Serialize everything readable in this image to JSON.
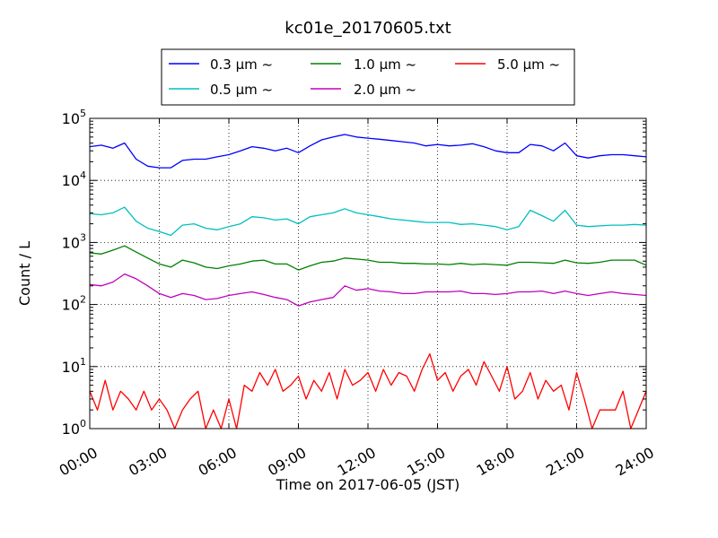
{
  "chart_data": {
    "type": "line",
    "title": "kc01e_20170605.txt",
    "xlabel": "Time on 2017-06-05 (JST)",
    "ylabel": "Count / L",
    "yscale": "log",
    "ylim": [
      1,
      100000
    ],
    "xlim": [
      "2017-06-05 00:00",
      "2017-06-06 00:00"
    ],
    "x_ticks": [
      "00:00",
      "03:00",
      "06:00",
      "09:00",
      "12:00",
      "15:00",
      "18:00",
      "21:00",
      "24:00"
    ],
    "y_ticks": [
      {
        "value": 1,
        "base": "10",
        "exp": "0"
      },
      {
        "value": 10,
        "base": "10",
        "exp": "1"
      },
      {
        "value": 100,
        "base": "10",
        "exp": "2"
      },
      {
        "value": 1000,
        "base": "10",
        "exp": "3"
      },
      {
        "value": 10000,
        "base": "10",
        "exp": "4"
      },
      {
        "value": 100000,
        "base": "10",
        "exp": "5"
      }
    ],
    "grid": true,
    "legend_position": "top",
    "series": [
      {
        "name": "0.3 μm ~",
        "color": "#0000ff",
        "x": [
          "00:00",
          "00:30",
          "01:00",
          "01:30",
          "02:00",
          "02:30",
          "03:00",
          "03:30",
          "04:00",
          "04:30",
          "05:00",
          "05:30",
          "06:00",
          "06:30",
          "07:00",
          "07:30",
          "08:00",
          "08:30",
          "09:00",
          "09:30",
          "10:00",
          "10:30",
          "11:00",
          "11:30",
          "12:00",
          "12:30",
          "13:00",
          "13:30",
          "14:00",
          "14:30",
          "15:00",
          "15:30",
          "16:00",
          "16:30",
          "17:00",
          "17:30",
          "18:00",
          "18:30",
          "19:00",
          "19:30",
          "20:00",
          "20:30",
          "21:00",
          "21:30",
          "22:00",
          "22:30",
          "23:00",
          "23:30",
          "24:00"
        ],
        "values": [
          35000,
          37000,
          33000,
          40000,
          22000,
          17000,
          16000,
          16000,
          21000,
          22000,
          22000,
          24000,
          26000,
          30000,
          35000,
          33000,
          30000,
          33000,
          28000,
          36000,
          45000,
          50000,
          55000,
          50000,
          48000,
          46000,
          44000,
          42000,
          40000,
          36000,
          38000,
          36000,
          37000,
          39000,
          35000,
          30000,
          28000,
          28000,
          38000,
          36000,
          30000,
          40000,
          25000,
          23000,
          25000,
          26000,
          26000,
          25000,
          24000
        ]
      },
      {
        "name": "0.5 μm ~",
        "color": "#00bfbf",
        "x": [
          "00:00",
          "00:30",
          "01:00",
          "01:30",
          "02:00",
          "02:30",
          "03:00",
          "03:30",
          "04:00",
          "04:30",
          "05:00",
          "05:30",
          "06:00",
          "06:30",
          "07:00",
          "07:30",
          "08:00",
          "08:30",
          "09:00",
          "09:30",
          "10:00",
          "10:30",
          "11:00",
          "11:30",
          "12:00",
          "12:30",
          "13:00",
          "13:30",
          "14:00",
          "14:30",
          "15:00",
          "15:30",
          "16:00",
          "16:30",
          "17:00",
          "17:30",
          "18:00",
          "18:30",
          "19:00",
          "19:30",
          "20:00",
          "20:30",
          "21:00",
          "21:30",
          "22:00",
          "22:30",
          "23:00",
          "23:30",
          "24:00"
        ],
        "values": [
          2900,
          2800,
          3000,
          3700,
          2200,
          1700,
          1500,
          1300,
          1900,
          2000,
          1700,
          1600,
          1800,
          2000,
          2600,
          2500,
          2300,
          2400,
          2000,
          2600,
          2800,
          3000,
          3500,
          3000,
          2800,
          2600,
          2400,
          2300,
          2200,
          2100,
          2100,
          2100,
          1950,
          2000,
          1900,
          1800,
          1600,
          1800,
          3300,
          2700,
          2200,
          3300,
          1900,
          1800,
          1850,
          1900,
          1900,
          1950,
          1900
        ]
      },
      {
        "name": "1.0 μm ~",
        "color": "#008000",
        "x": [
          "00:00",
          "00:30",
          "01:00",
          "01:30",
          "02:00",
          "02:30",
          "03:00",
          "03:30",
          "04:00",
          "04:30",
          "05:00",
          "05:30",
          "06:00",
          "06:30",
          "07:00",
          "07:30",
          "08:00",
          "08:30",
          "09:00",
          "09:30",
          "10:00",
          "10:30",
          "11:00",
          "11:30",
          "12:00",
          "12:30",
          "13:00",
          "13:30",
          "14:00",
          "14:30",
          "15:00",
          "15:30",
          "16:00",
          "16:30",
          "17:00",
          "17:30",
          "18:00",
          "18:30",
          "19:00",
          "19:30",
          "20:00",
          "20:30",
          "21:00",
          "21:30",
          "22:00",
          "22:30",
          "23:00",
          "23:30",
          "24:00"
        ],
        "values": [
          680,
          650,
          750,
          880,
          700,
          560,
          450,
          400,
          520,
          470,
          400,
          380,
          420,
          450,
          500,
          520,
          450,
          450,
          360,
          420,
          480,
          500,
          560,
          540,
          520,
          480,
          480,
          460,
          460,
          450,
          450,
          440,
          460,
          440,
          450,
          440,
          430,
          480,
          480,
          470,
          460,
          520,
          470,
          460,
          480,
          520,
          520,
          520,
          430
        ]
      },
      {
        "name": "2.0 μm ~",
        "color": "#bf00bf",
        "x": [
          "00:00",
          "00:30",
          "01:00",
          "01:30",
          "02:00",
          "02:30",
          "03:00",
          "03:30",
          "04:00",
          "04:30",
          "05:00",
          "05:30",
          "06:00",
          "06:30",
          "07:00",
          "07:30",
          "08:00",
          "08:30",
          "09:00",
          "09:30",
          "10:00",
          "10:30",
          "11:00",
          "11:30",
          "12:00",
          "12:30",
          "13:00",
          "13:30",
          "14:00",
          "14:30",
          "15:00",
          "15:30",
          "16:00",
          "16:30",
          "17:00",
          "17:30",
          "18:00",
          "18:30",
          "19:00",
          "19:30",
          "20:00",
          "20:30",
          "21:00",
          "21:30",
          "22:00",
          "22:30",
          "23:00",
          "23:30",
          "24:00"
        ],
        "values": [
          210,
          200,
          230,
          310,
          260,
          200,
          150,
          130,
          150,
          140,
          120,
          125,
          140,
          150,
          160,
          145,
          130,
          120,
          95,
          110,
          120,
          130,
          200,
          170,
          180,
          165,
          160,
          150,
          150,
          160,
          160,
          160,
          165,
          150,
          150,
          145,
          150,
          160,
          160,
          165,
          150,
          165,
          150,
          140,
          150,
          160,
          150,
          145,
          140
        ]
      },
      {
        "name": "5.0 μm ~",
        "color": "#ff0000",
        "x": [
          "00:00",
          "00:20",
          "00:40",
          "01:00",
          "01:20",
          "01:40",
          "02:00",
          "02:20",
          "02:40",
          "03:00",
          "03:20",
          "03:40",
          "04:00",
          "04:20",
          "04:40",
          "05:00",
          "05:20",
          "05:40",
          "06:00",
          "06:20",
          "06:40",
          "07:00",
          "07:20",
          "07:40",
          "08:00",
          "08:20",
          "08:40",
          "09:00",
          "09:20",
          "09:40",
          "10:00",
          "10:20",
          "10:40",
          "11:00",
          "11:20",
          "11:40",
          "12:00",
          "12:20",
          "12:40",
          "13:00",
          "13:20",
          "13:40",
          "14:00",
          "14:20",
          "14:40",
          "15:00",
          "15:20",
          "15:40",
          "16:00",
          "16:20",
          "16:40",
          "17:00",
          "17:20",
          "17:40",
          "18:00",
          "18:20",
          "18:40",
          "19:00",
          "19:20",
          "19:40",
          "20:00",
          "20:20",
          "20:40",
          "21:00",
          "21:20",
          "21:40",
          "22:00",
          "22:20",
          "22:40",
          "23:00",
          "23:20",
          "23:40",
          "24:00"
        ],
        "values": [
          4,
          2,
          6,
          2,
          4,
          3,
          2,
          4,
          2,
          3,
          2,
          1,
          2,
          3,
          4,
          1,
          2,
          1,
          3,
          1,
          5,
          4,
          8,
          5,
          9,
          4,
          5,
          7,
          3,
          6,
          4,
          8,
          3,
          9,
          5,
          6,
          8,
          4,
          9,
          5,
          8,
          7,
          4,
          9,
          16,
          6,
          8,
          4,
          7,
          9,
          5,
          12,
          7,
          4,
          10,
          3,
          4,
          8,
          3,
          6,
          4,
          5,
          2,
          8,
          3,
          1,
          2,
          2,
          2,
          4,
          1,
          2,
          4
        ]
      }
    ]
  }
}
